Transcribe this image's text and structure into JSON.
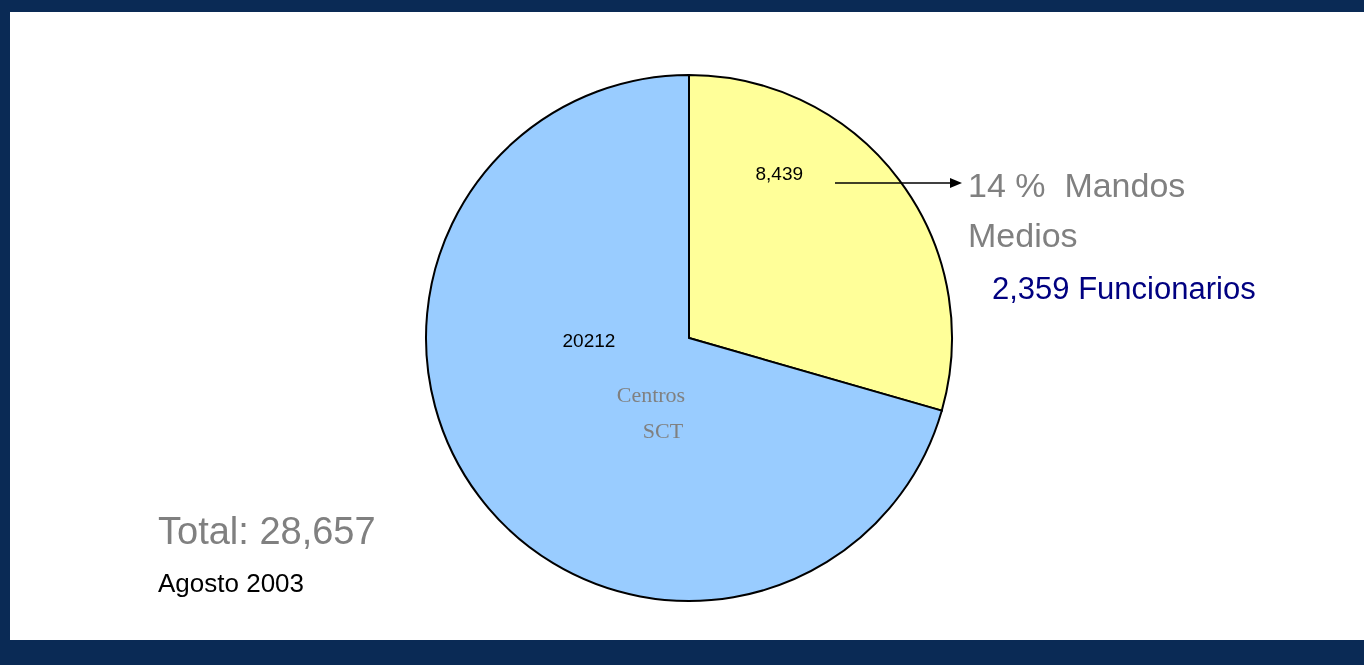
{
  "chart_data": {
    "type": "pie",
    "categories": [
      null,
      "Centros SCT"
    ],
    "values": [
      8439,
      20212
    ],
    "colors": [
      "#ffff99",
      "#99ccff"
    ],
    "value_labels": [
      "8,439",
      "20212"
    ],
    "annotations": [
      "14 %  Mandos Medios",
      "2,359 Funcionarios",
      "Total: 28,657",
      "Agosto 2003"
    ]
  }
}
